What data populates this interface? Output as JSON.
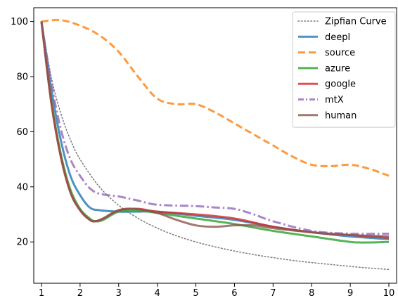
{
  "chart_data": {
    "type": "line",
    "title": "",
    "xlabel": "",
    "ylabel": "",
    "xlim": [
      0.8,
      10.2
    ],
    "ylim": [
      5,
      105
    ],
    "x_ticks": [
      1,
      2,
      3,
      4,
      5,
      6,
      7,
      8,
      9,
      10
    ],
    "y_ticks": [
      20,
      40,
      60,
      80,
      100
    ],
    "grid": false,
    "legend_position": "top-right",
    "series": [
      {
        "name": "Zipfian Curve",
        "color": "#7f7f7f",
        "style": "dotted",
        "x": [
          1,
          1.25,
          1.5,
          1.75,
          2,
          2.5,
          3,
          3.5,
          4,
          4.5,
          5,
          5.5,
          6,
          6.5,
          7,
          7.5,
          8,
          8.5,
          9,
          9.5,
          10
        ],
        "y": [
          100,
          80,
          66.7,
          57.1,
          50,
          40,
          33.3,
          28.6,
          25,
          22.2,
          20,
          18.2,
          16.7,
          15.4,
          14.3,
          13.3,
          12.5,
          11.8,
          11.1,
          10.5,
          10
        ]
      },
      {
        "name": "deepl",
        "color": "#1f77b4",
        "style": "solid",
        "x": [
          1,
          1.25,
          1.5,
          1.75,
          2,
          2.25,
          2.5,
          3,
          3.5,
          4,
          5,
          6,
          7,
          8,
          9,
          10
        ],
        "y": [
          100,
          76,
          57,
          44,
          37,
          32.5,
          31.5,
          31,
          31,
          31,
          29.5,
          28,
          25.5,
          23.5,
          22,
          21
        ]
      },
      {
        "name": "source",
        "color": "#ff7f0e",
        "style": "dashed",
        "x": [
          1,
          1.5,
          2,
          2.5,
          3,
          3.5,
          4,
          4.5,
          5,
          5.5,
          6,
          6.5,
          7,
          7.5,
          8,
          8.5,
          9,
          9.5,
          10
        ],
        "y": [
          100,
          100.5,
          98.5,
          95,
          89,
          80,
          72,
          70,
          70,
          67,
          63,
          59,
          55,
          51,
          48,
          47.5,
          48,
          46.5,
          44
        ]
      },
      {
        "name": "azure",
        "color": "#2ca02c",
        "style": "solid",
        "x": [
          1,
          1.25,
          1.5,
          1.75,
          2,
          2.25,
          2.4,
          2.6,
          3,
          3.5,
          4,
          5,
          6,
          7,
          8,
          9,
          9.5,
          10
        ],
        "y": [
          100,
          72,
          52,
          39,
          32,
          28.5,
          27.5,
          28,
          31,
          31.5,
          30.5,
          28.5,
          26.5,
          24,
          22,
          20,
          19.8,
          20
        ]
      },
      {
        "name": "google",
        "color": "#d62728",
        "style": "solid",
        "x": [
          1,
          1.25,
          1.5,
          1.75,
          2,
          2.25,
          2.4,
          2.6,
          3,
          3.5,
          4,
          5,
          6,
          7,
          8,
          9,
          10
        ],
        "y": [
          100,
          71,
          51,
          38,
          31.5,
          28,
          27.5,
          28.5,
          31.5,
          32,
          31,
          30,
          28.5,
          25.5,
          23.5,
          22.5,
          21.5
        ]
      },
      {
        "name": "mtX",
        "color": "#9467bd",
        "style": "dashdot",
        "x": [
          1,
          1.25,
          1.5,
          1.75,
          2,
          2.25,
          2.5,
          3,
          3.5,
          4,
          5,
          5.5,
          6,
          6.5,
          7,
          8,
          9,
          10
        ],
        "y": [
          100,
          78,
          61,
          50,
          44,
          39.5,
          37.5,
          36.5,
          35,
          33.5,
          33,
          32.5,
          32,
          30,
          27.5,
          24,
          23,
          23
        ]
      },
      {
        "name": "human",
        "color": "#8c564b",
        "style": "solid",
        "x": [
          1,
          1.25,
          1.5,
          1.75,
          2,
          2.25,
          2.4,
          2.6,
          3,
          3.4,
          4,
          4.5,
          5,
          5.5,
          6,
          6.5,
          7,
          8,
          9,
          10
        ],
        "y": [
          100,
          71,
          51,
          38,
          31.5,
          28,
          27.5,
          28.5,
          31.5,
          32,
          30.5,
          28,
          26,
          25.5,
          26,
          26,
          25,
          23.5,
          22.5,
          22
        ]
      }
    ]
  }
}
